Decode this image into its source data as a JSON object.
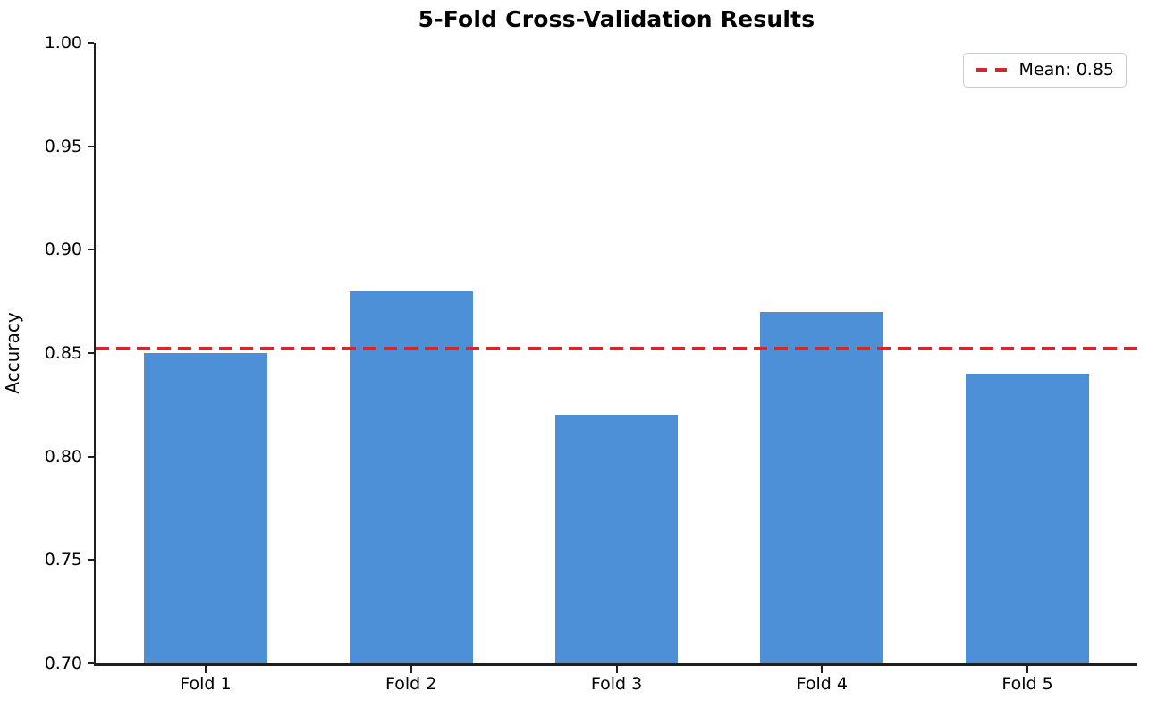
{
  "chart": {
    "colors": {
      "bar": "#4d90d8",
      "mean_line": "#d62728",
      "spine": "#1f1f1f",
      "legend_border": "#cccccc",
      "text": "#000000"
    }
  },
  "chart_data": {
    "type": "bar",
    "title": "5-Fold Cross-Validation Results",
    "xlabel": "",
    "ylabel": "Accuracy",
    "categories": [
      "Fold 1",
      "Fold 2",
      "Fold 3",
      "Fold 4",
      "Fold 5"
    ],
    "values": [
      0.85,
      0.88,
      0.82,
      0.87,
      0.84
    ],
    "ylim": [
      0.7,
      1.0
    ],
    "ytick_step": 0.05,
    "ytick_labels": [
      "0.70",
      "0.75",
      "0.80",
      "0.85",
      "0.90",
      "0.95",
      "1.00"
    ],
    "xlim": [
      -0.535,
      4.535
    ],
    "bar_width": 0.6,
    "grid": false,
    "legend_position": "upper right",
    "mean_line": {
      "value": 0.852,
      "label": "Mean: 0.85",
      "style": "dashed"
    }
  }
}
